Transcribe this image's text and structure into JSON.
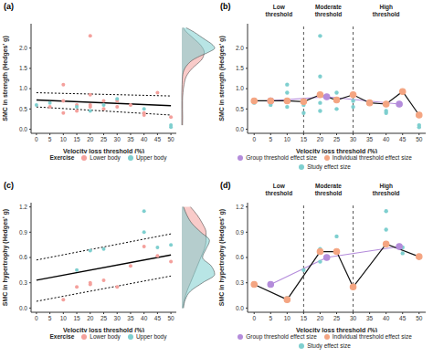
{
  "chart_data": [
    {
      "type": "scatter",
      "title": "(a)",
      "x_label": "Velocity loss threshold (%)",
      "y_label": "SMC in strength (Hedges' g)",
      "xlim": [
        -2,
        52
      ],
      "xticks": [
        0,
        5,
        10,
        15,
        20,
        25,
        30,
        35,
        40,
        45,
        50
      ],
      "ylim": [
        -0.1,
        2.6
      ],
      "yticks": [
        {
          "value": 0,
          "label": "0.0"
        },
        {
          "value": 0.5,
          "label": "0.5"
        },
        {
          "value": 1,
          "label": "1.0"
        },
        {
          "value": 1.5,
          "label": "1.5"
        },
        {
          "value": 2,
          "label": "2.0"
        }
      ],
      "legend": "bottom",
      "legend_title": "Exercise",
      "series": [
        {
          "name": "Lower body",
          "color": "#f4a09c",
          "marker": "circle",
          "x": [
            5,
            10,
            10,
            15,
            15,
            20,
            20,
            20,
            20,
            25,
            25,
            30,
            30,
            35,
            40,
            40,
            45,
            50,
            10
          ],
          "values": [
            0.55,
            0.4,
            0.7,
            0.6,
            0.45,
            0.85,
            0.6,
            0.55,
            2.3,
            0.5,
            0.7,
            0.7,
            0.55,
            0.6,
            0.4,
            0.35,
            0.9,
            0.3,
            1.1
          ]
        },
        {
          "name": "Upper body",
          "color": "#7ecfcf",
          "marker": "circle",
          "x": [
            0,
            5,
            15,
            20,
            25,
            30,
            40,
            50,
            50
          ],
          "values": [
            0.6,
            0.65,
            0.55,
            0.45,
            0.6,
            0.75,
            0.5,
            0.1,
            0.05
          ]
        }
      ],
      "fit": {
        "x": [
          0,
          50
        ],
        "values": [
          0.72,
          0.58
        ],
        "ci_upper": [
          0.9,
          0.82
        ],
        "ci_lower": [
          0.55,
          0.35
        ]
      },
      "density": {
        "y": [
          0,
          0.1,
          0.2,
          0.3,
          0.4,
          0.5,
          0.6,
          0.7,
          0.8,
          0.9,
          1.0,
          1.2,
          1.4,
          1.6,
          1.8,
          2.0,
          2.2,
          2.4
        ],
        "series": [
          {
            "name": "Lower body",
            "values": [
              0.1,
              0.3,
              0.6,
              0.9,
              1.2,
              1.4,
              1.5,
              1.45,
              1.3,
              1.0,
              0.7,
              0.3,
              0.15,
              0.08,
              0.05,
              0.05,
              0.06,
              0.05
            ]
          },
          {
            "name": "Upper body",
            "values": [
              0.3,
              0.8,
              1.2,
              1.6,
              2.0,
              2.2,
              1.8,
              1.2,
              0.7,
              0.4,
              0.2,
              0.05,
              0.02,
              0,
              0,
              0,
              0,
              0
            ]
          }
        ]
      }
    },
    {
      "type": "line",
      "title": "(b)",
      "x_label": "Velocity loss threshold (%)",
      "y_label": "SMC in strength (Hedges' g)",
      "xlim": [
        -2,
        52
      ],
      "xticks": [
        0,
        5,
        10,
        15,
        20,
        25,
        30,
        35,
        40,
        45,
        50
      ],
      "ylim": [
        -0.1,
        2.6
      ],
      "yticks": [
        {
          "value": 0,
          "label": "0.0"
        },
        {
          "value": 0.5,
          "label": "0.5"
        },
        {
          "value": 1,
          "label": "1.0"
        },
        {
          "value": 1.5,
          "label": "1.5"
        },
        {
          "value": 2,
          "label": "2.0"
        }
      ],
      "legend": "bottom",
      "regions": [
        {
          "text": "Low threshold",
          "x": [
            0,
            15
          ]
        },
        {
          "text": "Moderate threshold",
          "x": [
            15,
            30
          ]
        },
        {
          "text": "High threshold",
          "x": [
            30,
            50
          ]
        }
      ],
      "vlines": [
        15,
        30
      ],
      "series": [
        {
          "name": "Group threshold effect size",
          "type": "line",
          "color": "#b48cdb",
          "marker": "circle",
          "x": [
            5,
            22,
            44
          ],
          "values": [
            0.7,
            0.8,
            0.62
          ]
        },
        {
          "name": "Individual threshold effect size",
          "type": "line",
          "color": "#f4a582",
          "marker": "circle",
          "x": [
            0,
            5,
            10,
            15,
            20,
            25,
            30,
            35,
            40,
            45,
            50
          ],
          "values": [
            0.7,
            0.7,
            0.7,
            0.68,
            0.85,
            0.72,
            0.85,
            0.65,
            0.62,
            0.93,
            0.35
          ]
        },
        {
          "name": "Study effect size",
          "type": "scatter",
          "color": "#7ecfcf",
          "marker": "circle",
          "x": [
            0,
            5,
            10,
            10,
            10,
            15,
            15,
            20,
            20,
            20,
            20,
            25,
            25,
            25,
            30,
            30,
            40,
            40,
            45,
            50,
            50
          ],
          "values": [
            0.65,
            0.6,
            0.55,
            0.9,
            1.1,
            0.4,
            0.6,
            0.45,
            0.65,
            1.3,
            2.3,
            0.5,
            0.75,
            0.9,
            0.55,
            0.7,
            0.4,
            0.45,
            0.95,
            0.05,
            0.1
          ]
        }
      ]
    },
    {
      "type": "scatter",
      "title": "(c)",
      "x_label": "Velocity loss threshold (%)",
      "y_label": "SMC in hypertrophy (Hedges' g)",
      "xlim": [
        -2,
        52
      ],
      "xticks": [
        0,
        5,
        10,
        15,
        20,
        25,
        30,
        35,
        40,
        45,
        50
      ],
      "ylim": [
        -0.05,
        1.25
      ],
      "yticks": [
        {
          "value": 0,
          "label": "0.0"
        },
        {
          "value": 0.3,
          "label": "0.3"
        },
        {
          "value": 0.6,
          "label": "0.6"
        },
        {
          "value": 0.9,
          "label": "0.9"
        },
        {
          "value": 1.2,
          "label": "1.2"
        }
      ],
      "legend": "bottom",
      "legend_title": "Exercise",
      "series": [
        {
          "name": "Lower body",
          "color": "#f4a09c",
          "marker": "circle",
          "x": [
            10,
            15,
            20,
            20,
            25,
            30,
            35,
            40,
            45,
            50
          ],
          "values": [
            0.1,
            0.25,
            0.3,
            0.28,
            0.33,
            0.25,
            0.5,
            0.73,
            0.62,
            0.55
          ]
        },
        {
          "name": "Upper body",
          "color": "#7ecfcf",
          "marker": "circle",
          "x": [
            15,
            20,
            25,
            40,
            40,
            45,
            50
          ],
          "values": [
            0.45,
            0.68,
            0.7,
            1.15,
            0.9,
            0.72,
            0.75
          ]
        }
      ],
      "fit": {
        "x": [
          0,
          50
        ],
        "values": [
          0.33,
          0.63
        ],
        "ci_upper": [
          0.57,
          0.88
        ],
        "ci_lower": [
          0.08,
          0.38
        ]
      },
      "density": {
        "y": [
          0,
          0.1,
          0.2,
          0.3,
          0.4,
          0.5,
          0.6,
          0.7,
          0.8,
          0.9,
          1.0,
          1.1,
          1.2
        ],
        "series": [
          {
            "name": "Lower body",
            "values": [
              0.5,
              0.9,
              1.2,
              1.4,
              1.4,
              1.3,
              1.1,
              0.9,
              0.7,
              0.5,
              0.3,
              0.15,
              0.05
            ]
          },
          {
            "name": "Upper body",
            "values": [
              0.1,
              0.3,
              0.6,
              1.1,
              1.6,
              1.4,
              1.2,
              1.7,
              1.9,
              1.2,
              0.5,
              0.2,
              0.1
            ]
          }
        ]
      }
    },
    {
      "type": "line",
      "title": "(d)",
      "x_label": "Velocity loss threshold (%)",
      "y_label": "SMC in hypertrophy (Hedges' g)",
      "xlim": [
        -2,
        52
      ],
      "xticks": [
        0,
        5,
        10,
        15,
        20,
        25,
        30,
        35,
        40,
        45,
        50
      ],
      "ylim": [
        -0.05,
        1.25
      ],
      "yticks": [
        {
          "value": 0,
          "label": "0.0"
        },
        {
          "value": 0.3,
          "label": "0.3"
        },
        {
          "value": 0.6,
          "label": "0.6"
        },
        {
          "value": 0.9,
          "label": "0.9"
        },
        {
          "value": 1.2,
          "label": "1.2"
        }
      ],
      "legend": "bottom",
      "regions": [
        {
          "text": "Low threshold",
          "x": [
            0,
            15
          ]
        },
        {
          "text": "Moderate threshold",
          "x": [
            15,
            30
          ]
        },
        {
          "text": "High threshold",
          "x": [
            30,
            50
          ]
        }
      ],
      "vlines": [
        15,
        30
      ],
      "series": [
        {
          "name": "Group threshold effect size",
          "type": "line",
          "color": "#b48cdb",
          "marker": "circle",
          "x": [
            5,
            22,
            44
          ],
          "values": [
            0.28,
            0.6,
            0.73
          ]
        },
        {
          "name": "Individual threshold effect size",
          "type": "line",
          "color": "#f4a582",
          "marker": "circle",
          "x": [
            0,
            10,
            20,
            25,
            30,
            40,
            50
          ],
          "values": [
            0.28,
            0.1,
            0.67,
            0.67,
            0.25,
            0.76,
            0.61
          ]
        },
        {
          "name": "Study effect size",
          "type": "scatter",
          "color": "#7ecfcf",
          "marker": "circle",
          "x": [
            10,
            15,
            20,
            20,
            25,
            30,
            40,
            40,
            45,
            45,
            50
          ],
          "values": [
            0.12,
            0.45,
            0.7,
            0.55,
            0.85,
            0.25,
            1.15,
            0.93,
            0.72,
            0.65,
            0.62
          ]
        }
      ]
    }
  ]
}
